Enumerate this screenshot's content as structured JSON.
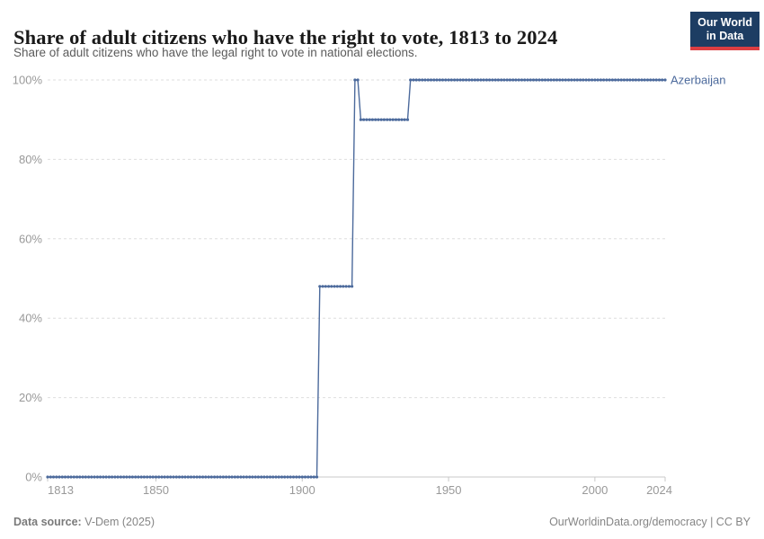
{
  "header": {
    "title": "Share of adult citizens who have the right to vote, 1813 to 2024",
    "subtitle": "Share of adult citizens who have the legal right to vote in national elections.",
    "logo": {
      "line1": "Our World",
      "line2": "in Data"
    }
  },
  "chart_data": {
    "type": "line",
    "title": "Share of adult citizens who have the right to vote, 1813 to 2024",
    "subtitle": "Share of adult citizens who have the legal right to vote in national elections.",
    "xlabel": "",
    "ylabel": "",
    "xlim": [
      1813,
      2024
    ],
    "ylim": [
      0,
      100
    ],
    "x_ticks": [
      1813,
      1850,
      1900,
      1950,
      2000,
      2024
    ],
    "y_ticks": [
      0,
      20,
      40,
      60,
      80,
      100
    ],
    "y_tick_suffix": "%",
    "grid": true,
    "points_interval": "yearly",
    "legend_position": "right-of-line-end",
    "series": [
      {
        "name": "Azerbaijan",
        "color": "#4C6A9C",
        "segments": [
          {
            "from": 1813,
            "to": 1905,
            "value": 0
          },
          {
            "from": 1906,
            "to": 1917,
            "value": 48
          },
          {
            "from": 1918,
            "to": 1919,
            "value": 100
          },
          {
            "from": 1920,
            "to": 1936,
            "value": 90
          },
          {
            "from": 1937,
            "to": 2024,
            "value": 100
          }
        ]
      }
    ]
  },
  "footer": {
    "source_label": "Data source:",
    "source_value": " V-Dem (2025)",
    "right_text": "OurWorldinData.org/democracy | CC BY"
  },
  "colors": {
    "series_line": "#4C6A9C",
    "logo_background": "#1d3d63",
    "logo_underline": "#dc3e42",
    "axis_line": "#c8c8c8",
    "gridline": "#dedede",
    "tick_label": "#999999",
    "title_text": "#1a1a1a",
    "subtitle_text": "#5b5b5b",
    "footer_text": "#858585"
  }
}
